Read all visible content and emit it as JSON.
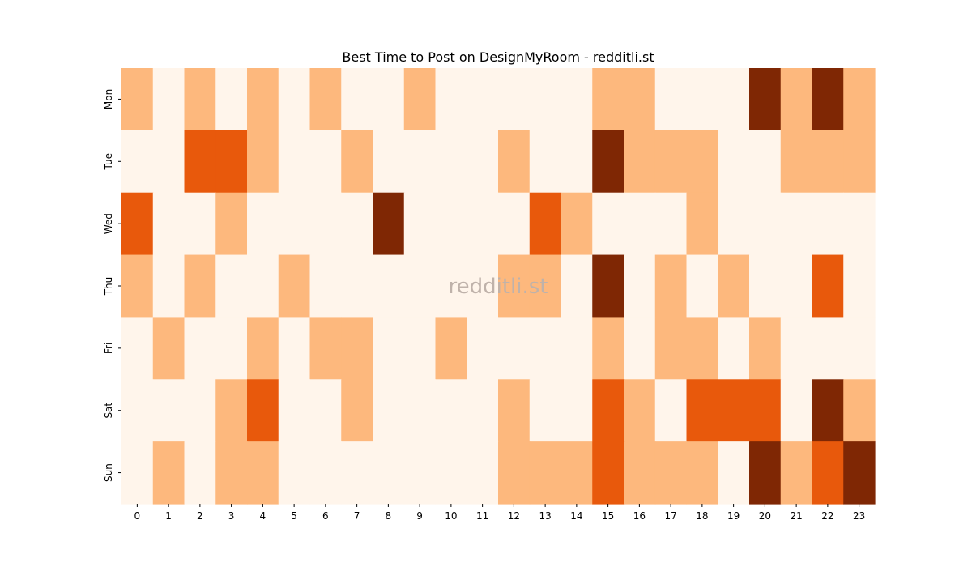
{
  "chart_data": {
    "type": "heatmap",
    "title": "Best Time to Post on DesignMyRoom - redditli.st",
    "watermark": "redditli.st",
    "xlabel": "",
    "ylabel": "",
    "x_categories": [
      "0",
      "1",
      "2",
      "3",
      "4",
      "5",
      "6",
      "7",
      "8",
      "9",
      "10",
      "11",
      "12",
      "13",
      "14",
      "15",
      "16",
      "17",
      "18",
      "19",
      "20",
      "21",
      "22",
      "23"
    ],
    "y_categories": [
      "Mon",
      "Tue",
      "Wed",
      "Thu",
      "Fri",
      "Sat",
      "Sun"
    ],
    "color_scale": [
      "#fff5eb",
      "#fdb87d",
      "#e8590c",
      "#7f2704"
    ],
    "values": [
      [
        1,
        0,
        1,
        0,
        1,
        0,
        1,
        0,
        0,
        1,
        0,
        0,
        0,
        0,
        0,
        1,
        1,
        0,
        0,
        0,
        3,
        1,
        3,
        1
      ],
      [
        0,
        0,
        2,
        2,
        1,
        0,
        0,
        1,
        0,
        0,
        0,
        0,
        1,
        0,
        0,
        3,
        1,
        1,
        1,
        0,
        0,
        1,
        1,
        1
      ],
      [
        2,
        0,
        0,
        1,
        0,
        0,
        0,
        0,
        3,
        0,
        0,
        0,
        0,
        2,
        1,
        0,
        0,
        0,
        1,
        0,
        0,
        0,
        0,
        0
      ],
      [
        1,
        0,
        1,
        0,
        0,
        1,
        0,
        0,
        0,
        0,
        0,
        0,
        1,
        1,
        0,
        3,
        0,
        1,
        0,
        1,
        0,
        0,
        2,
        0
      ],
      [
        0,
        1,
        0,
        0,
        1,
        0,
        1,
        1,
        0,
        0,
        1,
        0,
        0,
        0,
        0,
        1,
        0,
        1,
        1,
        0,
        1,
        0,
        0,
        0
      ],
      [
        0,
        0,
        0,
        1,
        2,
        0,
        0,
        1,
        0,
        0,
        0,
        0,
        1,
        0,
        0,
        2,
        1,
        0,
        2,
        2,
        2,
        0,
        3,
        1
      ],
      [
        0,
        1,
        0,
        1,
        1,
        0,
        0,
        0,
        0,
        0,
        0,
        0,
        1,
        1,
        1,
        2,
        1,
        1,
        1,
        0,
        3,
        1,
        2,
        3
      ]
    ]
  }
}
